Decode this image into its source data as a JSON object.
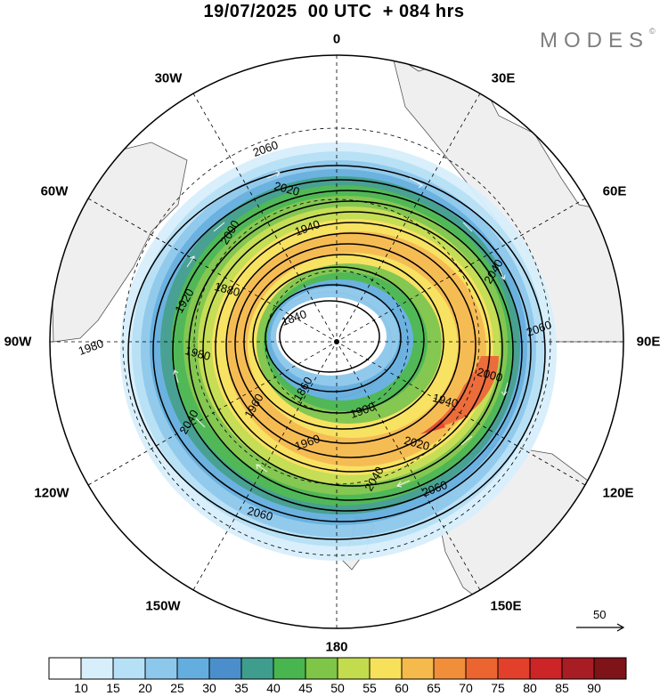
{
  "title": "19/07/2025  00 UTC  + 084 hrs",
  "brand": "MODES",
  "brand_mark": "©",
  "longitude_labels": {
    "lon_0": "0",
    "lon_30e": "30E",
    "lon_60e": "60E",
    "lon_90e": "90E",
    "lon_120e": "120E",
    "lon_150e": "150E",
    "lon_180": "180",
    "lon_150w": "150W",
    "lon_120w": "120W",
    "lon_90w": "90W",
    "lon_60w": "60W",
    "lon_30w": "30W"
  },
  "contour_labels": [
    "2060",
    "2020",
    "2000",
    "1940",
    "1880",
    "1920",
    "1840",
    "1980",
    "1860",
    "1900",
    "1940",
    "1960",
    "1960",
    "2020",
    "2040",
    "2060",
    "2060",
    "2040",
    "1980",
    "2000",
    "2040",
    "2060"
  ],
  "reference_vector": {
    "value": "50"
  },
  "colorbar": {
    "labels": [
      "10",
      "15",
      "20",
      "25",
      "30",
      "35",
      "40",
      "45",
      "50",
      "55",
      "60",
      "65",
      "70",
      "75",
      "80",
      "85",
      "90"
    ],
    "colors": [
      "#ffffff",
      "#d7effb",
      "#b6e0f6",
      "#8dc8ec",
      "#64aedf",
      "#4a8fcb",
      "#3f9d8d",
      "#48b54f",
      "#7ec548",
      "#c3dc4e",
      "#f7e15a",
      "#f6b94b",
      "#f18e3a",
      "#ec6530",
      "#e2402b",
      "#cc2427",
      "#a81c23",
      "#7e1318"
    ]
  },
  "colors": {
    "land": "#efefef",
    "coast": "#555555",
    "contour": "#000000",
    "vector": "#ffffff"
  }
}
